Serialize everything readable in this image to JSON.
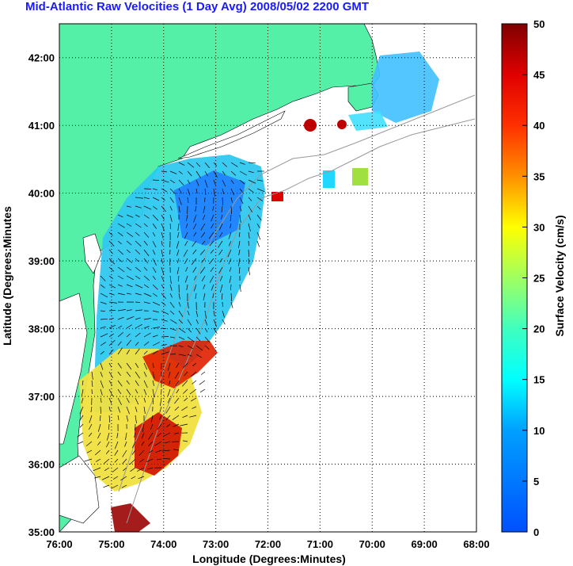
{
  "title": "Mid-Atlantic Raw Velocities (1 Day Avg) 2008/05/02 2200 GMT",
  "chart_data": {
    "type": "heatmap",
    "xlabel": "Longitude (Degrees:Minutes)",
    "ylabel": "Latitude (Degrees:Minutes",
    "x_ticks": [
      "76:00",
      "75:00",
      "74:00",
      "73:00",
      "72:00",
      "71:00",
      "70:00",
      "69:00",
      "68:00"
    ],
    "y_ticks": [
      "35:00",
      "36:00",
      "37:00",
      "38:00",
      "39:00",
      "40:00",
      "41:00",
      "42:00"
    ],
    "xlim": [
      -76,
      -68
    ],
    "ylim": [
      35,
      42.5
    ],
    "grid": true,
    "colorbar": {
      "label": "Surface Velocity (cm/s)",
      "ticks": [
        "0",
        "5",
        "10",
        "15",
        "20",
        "25",
        "30",
        "35",
        "40",
        "45",
        "50"
      ],
      "range": [
        0,
        50
      ]
    },
    "colors": {
      "land": "#55f0a8",
      "water": "#ffffff",
      "title": "#1a1aff"
    }
  }
}
